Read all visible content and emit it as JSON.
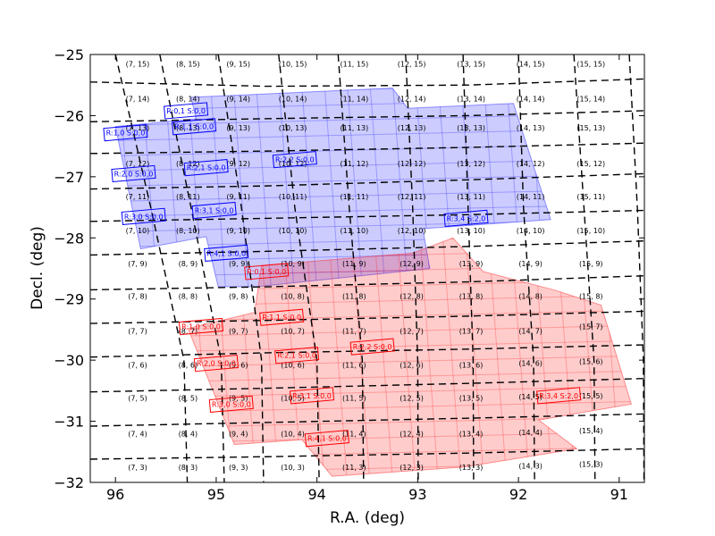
{
  "chart_data": {
    "type": "scatter",
    "title": "",
    "xlabel": "R.A. (deg)",
    "ylabel": "Decl. (deg)",
    "xlim": [
      96.25,
      90.75
    ],
    "ylim": [
      -32,
      -25
    ],
    "x_inverted": true,
    "grid": false,
    "xticks": [
      96,
      95,
      94,
      93,
      92,
      91
    ],
    "xtick_labels": [
      "96",
      "95",
      "94",
      "93",
      "92",
      "91"
    ],
    "yticks": [
      -25,
      -26,
      -27,
      -28,
      -29,
      -30,
      -31,
      -32
    ],
    "ytick_labels": [
      "−25",
      "−26",
      "−27",
      "−28",
      "−29",
      "−30",
      "−31",
      "−32"
    ],
    "colors": {
      "visit_a": "#0000ff",
      "visit_b": "#ff0000",
      "patch_lines": "#000000"
    },
    "patch_grid": {
      "ra_boundaries": [
        [
          96.0,
          95.65,
          95.32
        ],
        [
          95.56,
          95.25,
          94.95
        ],
        [
          94.98,
          94.75,
          94.55
        ],
        [
          94.38,
          94.22,
          94.0
        ],
        [
          93.79,
          93.68,
          93.55
        ],
        [
          93.12,
          93.05,
          93.0
        ],
        [
          92.55,
          92.5,
          92.45
        ],
        [
          92.0,
          91.95,
          91.85
        ],
        [
          91.45,
          91.35,
          91.25
        ],
        [
          90.9,
          90.82,
          90.76
        ]
      ],
      "dec_boundaries": [
        [
          -25.45,
          -25.52,
          -25.5,
          -25.4
        ],
        [
          -26.1,
          -26.05,
          -26.0,
          -25.92
        ],
        [
          -26.62,
          -26.58,
          -26.52,
          -26.45
        ],
        [
          -27.2,
          -27.15,
          -27.05,
          -26.95
        ],
        [
          -27.73,
          -27.68,
          -27.62,
          -27.55
        ],
        [
          -28.28,
          -28.22,
          -28.14,
          -28.05
        ],
        [
          -28.85,
          -28.8,
          -28.72,
          -28.62
        ],
        [
          -29.4,
          -29.35,
          -29.28,
          -29.2
        ],
        [
          -29.95,
          -29.88,
          -29.82,
          -29.75
        ],
        [
          -30.52,
          -30.46,
          -30.38,
          -30.3
        ],
        [
          -31.08,
          -31.02,
          -30.95,
          -30.88
        ],
        [
          -31.62,
          -31.58,
          -31.52,
          -31.45
        ]
      ]
    },
    "patch_labels": [
      {
        "text": "(7, 15)",
        "ra": 95.78,
        "dec": -25.15
      },
      {
        "text": "(8, 15)",
        "ra": 95.28,
        "dec": -25.15
      },
      {
        "text": "(9, 15)",
        "ra": 94.78,
        "dec": -25.15
      },
      {
        "text": "(10, 15)",
        "ra": 94.24,
        "dec": -25.15
      },
      {
        "text": "(11, 15)",
        "ra": 93.63,
        "dec": -25.15
      },
      {
        "text": "(12, 15)",
        "ra": 93.06,
        "dec": -25.15
      },
      {
        "text": "(13, 15)",
        "ra": 92.47,
        "dec": -25.15
      },
      {
        "text": "(14, 15)",
        "ra": 91.88,
        "dec": -25.15
      },
      {
        "text": "(15, 15)",
        "ra": 91.28,
        "dec": -25.15
      },
      {
        "text": "(7, 14)",
        "ra": 95.78,
        "dec": -25.72
      },
      {
        "text": "(8, 14)",
        "ra": 95.28,
        "dec": -25.72
      },
      {
        "text": "(9, 14)",
        "ra": 94.78,
        "dec": -25.72
      },
      {
        "text": "(10, 14)",
        "ra": 94.24,
        "dec": -25.72
      },
      {
        "text": "(11, 14)",
        "ra": 93.63,
        "dec": -25.72
      },
      {
        "text": "(12, 14)",
        "ra": 93.06,
        "dec": -25.72
      },
      {
        "text": "(13, 14)",
        "ra": 92.47,
        "dec": -25.72
      },
      {
        "text": "(14, 14)",
        "ra": 91.88,
        "dec": -25.72
      },
      {
        "text": "(15, 14)",
        "ra": 91.28,
        "dec": -25.72
      },
      {
        "text": "(7, 13)",
        "ra": 95.78,
        "dec": -26.2
      },
      {
        "text": "(8, 13)",
        "ra": 95.28,
        "dec": -26.2
      },
      {
        "text": "(9, 13)",
        "ra": 94.78,
        "dec": -26.2
      },
      {
        "text": "(10, 13)",
        "ra": 94.24,
        "dec": -26.2
      },
      {
        "text": "(11, 13)",
        "ra": 93.63,
        "dec": -26.2
      },
      {
        "text": "(12, 13)",
        "ra": 93.06,
        "dec": -26.2
      },
      {
        "text": "(13, 13)",
        "ra": 92.47,
        "dec": -26.2
      },
      {
        "text": "(14, 13)",
        "ra": 91.88,
        "dec": -26.2
      },
      {
        "text": "(15, 13)",
        "ra": 91.28,
        "dec": -26.2
      },
      {
        "text": "(7, 12)",
        "ra": 95.78,
        "dec": -26.78
      },
      {
        "text": "(8, 12)",
        "ra": 95.28,
        "dec": -26.78
      },
      {
        "text": "(9, 12)",
        "ra": 94.78,
        "dec": -26.78
      },
      {
        "text": "(10, 12)",
        "ra": 94.24,
        "dec": -26.78
      },
      {
        "text": "(11, 12)",
        "ra": 93.63,
        "dec": -26.78
      },
      {
        "text": "(12, 12)",
        "ra": 93.06,
        "dec": -26.78
      },
      {
        "text": "(13, 12)",
        "ra": 92.47,
        "dec": -26.78
      },
      {
        "text": "(14, 12)",
        "ra": 91.88,
        "dec": -26.78
      },
      {
        "text": "(15, 12)",
        "ra": 91.28,
        "dec": -26.78
      },
      {
        "text": "(7, 11)",
        "ra": 95.78,
        "dec": -27.32
      },
      {
        "text": "(8, 11)",
        "ra": 95.28,
        "dec": -27.32
      },
      {
        "text": "(9, 11)",
        "ra": 94.78,
        "dec": -27.32
      },
      {
        "text": "(10, 11)",
        "ra": 94.24,
        "dec": -27.32
      },
      {
        "text": "(11, 11)",
        "ra": 93.63,
        "dec": -27.32
      },
      {
        "text": "(12, 11)",
        "ra": 93.06,
        "dec": -27.32
      },
      {
        "text": "(13, 11)",
        "ra": 92.47,
        "dec": -27.32
      },
      {
        "text": "(14, 11)",
        "ra": 91.88,
        "dec": -27.32
      },
      {
        "text": "(15, 11)",
        "ra": 91.28,
        "dec": -27.32
      },
      {
        "text": "(7, 10)",
        "ra": 95.78,
        "dec": -27.88
      },
      {
        "text": "(8, 10)",
        "ra": 95.28,
        "dec": -27.88
      },
      {
        "text": "(9, 10)",
        "ra": 94.78,
        "dec": -27.88
      },
      {
        "text": "(10, 10)",
        "ra": 94.24,
        "dec": -27.88
      },
      {
        "text": "(11, 10)",
        "ra": 93.63,
        "dec": -27.88
      },
      {
        "text": "(12, 10)",
        "ra": 93.06,
        "dec": -27.88
      },
      {
        "text": "(13, 10)",
        "ra": 92.47,
        "dec": -27.88
      },
      {
        "text": "(14, 10)",
        "ra": 91.88,
        "dec": -27.88
      },
      {
        "text": "(15, 10)",
        "ra": 91.28,
        "dec": -27.88
      },
      {
        "text": "(7, 9)",
        "ra": 95.78,
        "dec": -28.42
      },
      {
        "text": "(8, 9)",
        "ra": 95.28,
        "dec": -28.42
      },
      {
        "text": "(9, 9)",
        "ra": 94.78,
        "dec": -28.42
      },
      {
        "text": "(10, 9)",
        "ra": 94.24,
        "dec": -28.42
      },
      {
        "text": "(11, 9)",
        "ra": 93.63,
        "dec": -28.42
      },
      {
        "text": "(12, 9)",
        "ra": 93.06,
        "dec": -28.42
      },
      {
        "text": "(13, 9)",
        "ra": 92.47,
        "dec": -28.42
      },
      {
        "text": "(14, 9)",
        "ra": 91.88,
        "dec": -28.42
      },
      {
        "text": "(15, 9)",
        "ra": 91.28,
        "dec": -28.42
      },
      {
        "text": "(7, 8)",
        "ra": 95.78,
        "dec": -28.95
      },
      {
        "text": "(8, 8)",
        "ra": 95.28,
        "dec": -28.95
      },
      {
        "text": "(9, 8)",
        "ra": 94.78,
        "dec": -28.95
      },
      {
        "text": "(10, 8)",
        "ra": 94.24,
        "dec": -28.95
      },
      {
        "text": "(11, 8)",
        "ra": 93.63,
        "dec": -28.95
      },
      {
        "text": "(12, 8)",
        "ra": 93.06,
        "dec": -28.95
      },
      {
        "text": "(13, 8)",
        "ra": 92.47,
        "dec": -28.95
      },
      {
        "text": "(14, 8)",
        "ra": 91.88,
        "dec": -28.95
      },
      {
        "text": "(15, 8)",
        "ra": 91.28,
        "dec": -28.95
      },
      {
        "text": "(7, 7)",
        "ra": 95.78,
        "dec": -29.52
      },
      {
        "text": "(8, 7)",
        "ra": 95.28,
        "dec": -29.52
      },
      {
        "text": "(9, 7)",
        "ra": 94.78,
        "dec": -29.52
      },
      {
        "text": "(10, 7)",
        "ra": 94.24,
        "dec": -29.52
      },
      {
        "text": "(11, 7)",
        "ra": 93.63,
        "dec": -29.52
      },
      {
        "text": "(12, 7)",
        "ra": 93.06,
        "dec": -29.52
      },
      {
        "text": "(13, 7)",
        "ra": 92.47,
        "dec": -29.52
      },
      {
        "text": "(14, 7)",
        "ra": 91.88,
        "dec": -29.52
      },
      {
        "text": "(15, 7)",
        "ra": 91.28,
        "dec": -29.45
      },
      {
        "text": "(7, 6)",
        "ra": 95.78,
        "dec": -30.08
      },
      {
        "text": "(8, 6)",
        "ra": 95.28,
        "dec": -30.08
      },
      {
        "text": "(9, 6)",
        "ra": 94.78,
        "dec": -30.08
      },
      {
        "text": "(10, 6)",
        "ra": 94.24,
        "dec": -30.08
      },
      {
        "text": "(11, 6)",
        "ra": 93.63,
        "dec": -30.08
      },
      {
        "text": "(12, 6)",
        "ra": 93.06,
        "dec": -30.08
      },
      {
        "text": "(13, 6)",
        "ra": 92.47,
        "dec": -30.08
      },
      {
        "text": "(14, 6)",
        "ra": 91.88,
        "dec": -30.05
      },
      {
        "text": "(15, 6)",
        "ra": 91.28,
        "dec": -30.02
      },
      {
        "text": "(7, 5)",
        "ra": 95.78,
        "dec": -30.62
      },
      {
        "text": "(8, 5)",
        "ra": 95.28,
        "dec": -30.62
      },
      {
        "text": "(9, 5)",
        "ra": 94.78,
        "dec": -30.62
      },
      {
        "text": "(10, 5)",
        "ra": 94.24,
        "dec": -30.62
      },
      {
        "text": "(11, 5)",
        "ra": 93.63,
        "dec": -30.62
      },
      {
        "text": "(12, 5)",
        "ra": 93.06,
        "dec": -30.62
      },
      {
        "text": "(13, 5)",
        "ra": 92.47,
        "dec": -30.62
      },
      {
        "text": "(14, 5)",
        "ra": 91.88,
        "dec": -30.6
      },
      {
        "text": "(15, 5)",
        "ra": 91.28,
        "dec": -30.58
      },
      {
        "text": "(7, 4)",
        "ra": 95.78,
        "dec": -31.2
      },
      {
        "text": "(8, 4)",
        "ra": 95.28,
        "dec": -31.2
      },
      {
        "text": "(9, 4)",
        "ra": 94.78,
        "dec": -31.2
      },
      {
        "text": "(10, 4)",
        "ra": 94.24,
        "dec": -31.2
      },
      {
        "text": "(11, 4)",
        "ra": 93.63,
        "dec": -31.2
      },
      {
        "text": "(12, 4)",
        "ra": 93.06,
        "dec": -31.2
      },
      {
        "text": "(13, 4)",
        "ra": 92.47,
        "dec": -31.2
      },
      {
        "text": "(14, 4)",
        "ra": 91.88,
        "dec": -31.18
      },
      {
        "text": "(15, 4)",
        "ra": 91.28,
        "dec": -31.15
      },
      {
        "text": "(7, 3)",
        "ra": 95.78,
        "dec": -31.75
      },
      {
        "text": "(8, 3)",
        "ra": 95.28,
        "dec": -31.75
      },
      {
        "text": "(9, 3)",
        "ra": 94.78,
        "dec": -31.75
      },
      {
        "text": "(10, 3)",
        "ra": 94.24,
        "dec": -31.75
      },
      {
        "text": "(11, 3)",
        "ra": 93.63,
        "dec": -31.75
      },
      {
        "text": "(12, 3)",
        "ra": 93.06,
        "dec": -31.75
      },
      {
        "text": "(13, 3)",
        "ra": 92.47,
        "dec": -31.75
      },
      {
        "text": "(14, 3)",
        "ra": 91.88,
        "dec": -31.73
      },
      {
        "text": "(15, 3)",
        "ra": 91.28,
        "dec": -31.7
      }
    ],
    "series": [
      {
        "color": "#0000ff",
        "outline": [
          {
            "ra": 95.25,
            "dec": -25.7
          },
          {
            "ra": 93.25,
            "dec": -25.55
          },
          {
            "ra": 93.1,
            "dec": -25.88
          },
          {
            "ra": 92.05,
            "dec": -25.8
          },
          {
            "ra": 91.68,
            "dec": -27.7
          },
          {
            "ra": 92.95,
            "dec": -27.85
          },
          {
            "ra": 92.88,
            "dec": -28.5
          },
          {
            "ra": 94.6,
            "dec": -28.8
          },
          {
            "ra": 94.98,
            "dec": -28.8
          },
          {
            "ra": 95.1,
            "dec": -27.98
          },
          {
            "ra": 95.75,
            "dec": -28.18
          },
          {
            "ra": 96.0,
            "dec": -26.18
          },
          {
            "ra": 95.2,
            "dec": -26.05
          }
        ],
        "ccds": [
          {
            "label": "R:0,1 S:0,0",
            "ra": 95.3,
            "dec": -25.92
          },
          {
            "label": "R:1,0 S:0,0",
            "ra": 95.9,
            "dec": -26.28
          },
          {
            "label": "R:1,1 S:0,0",
            "ra": 95.22,
            "dec": -26.18
          },
          {
            "label": "R:2,0 S:0,0",
            "ra": 95.82,
            "dec": -26.95
          },
          {
            "label": "R:2,1 S:0,0",
            "ra": 95.1,
            "dec": -26.85
          },
          {
            "label": "R:2,2 S:0,0",
            "ra": 94.22,
            "dec": -26.72
          },
          {
            "label": "R:3,0 S:0,0",
            "ra": 95.72,
            "dec": -27.65
          },
          {
            "label": "R:3,1 S:0,0",
            "ra": 95.02,
            "dec": -27.55
          },
          {
            "label": "R:3,4 S:2,0",
            "ra": 92.52,
            "dec": -27.68
          },
          {
            "label": "R:4,1 S:0,0",
            "ra": 94.9,
            "dec": -28.25
          }
        ]
      },
      {
        "color": "#ff0000",
        "outline": [
          {
            "ra": 94.55,
            "dec": -28.45
          },
          {
            "ra": 93.05,
            "dec": -28.25
          },
          {
            "ra": 92.65,
            "dec": -28.0
          },
          {
            "ra": 92.35,
            "dec": -28.55
          },
          {
            "ra": 91.65,
            "dec": -28.85
          },
          {
            "ra": 91.18,
            "dec": -29.1
          },
          {
            "ra": 90.88,
            "dec": -30.72
          },
          {
            "ra": 91.8,
            "dec": -30.98
          },
          {
            "ra": 91.42,
            "dec": -31.45
          },
          {
            "ra": 92.55,
            "dec": -31.75
          },
          {
            "ra": 93.85,
            "dec": -31.9
          },
          {
            "ra": 94.15,
            "dec": -31.3
          },
          {
            "ra": 94.82,
            "dec": -31.38
          },
          {
            "ra": 95.28,
            "dec": -29.48
          },
          {
            "ra": 94.62,
            "dec": -29.22
          }
        ],
        "ccds": [
          {
            "label": "R:0,1 S:0,0",
            "ra": 94.5,
            "dec": -28.55
          },
          {
            "label": "R:1,0 S:0,0",
            "ra": 95.15,
            "dec": -29.45
          },
          {
            "label": "R:1,1 S:0,0",
            "ra": 94.35,
            "dec": -29.3
          },
          {
            "label": "R:2,0 S:0,0",
            "ra": 95.0,
            "dec": -30.05
          },
          {
            "label": "R:2,1 S:0,0",
            "ra": 94.2,
            "dec": -29.92
          },
          {
            "label": "R:2,2 S:0,0",
            "ra": 93.45,
            "dec": -29.78
          },
          {
            "label": "R:3,0 S:0,0",
            "ra": 94.85,
            "dec": -30.72
          },
          {
            "label": "R:3,1 S:0,0",
            "ra": 94.05,
            "dec": -30.58
          },
          {
            "label": "R:3,4 S:2,0",
            "ra": 91.6,
            "dec": -30.58
          },
          {
            "label": "R:4,1 S:0,0",
            "ra": 93.9,
            "dec": -31.28
          }
        ]
      }
    ]
  }
}
